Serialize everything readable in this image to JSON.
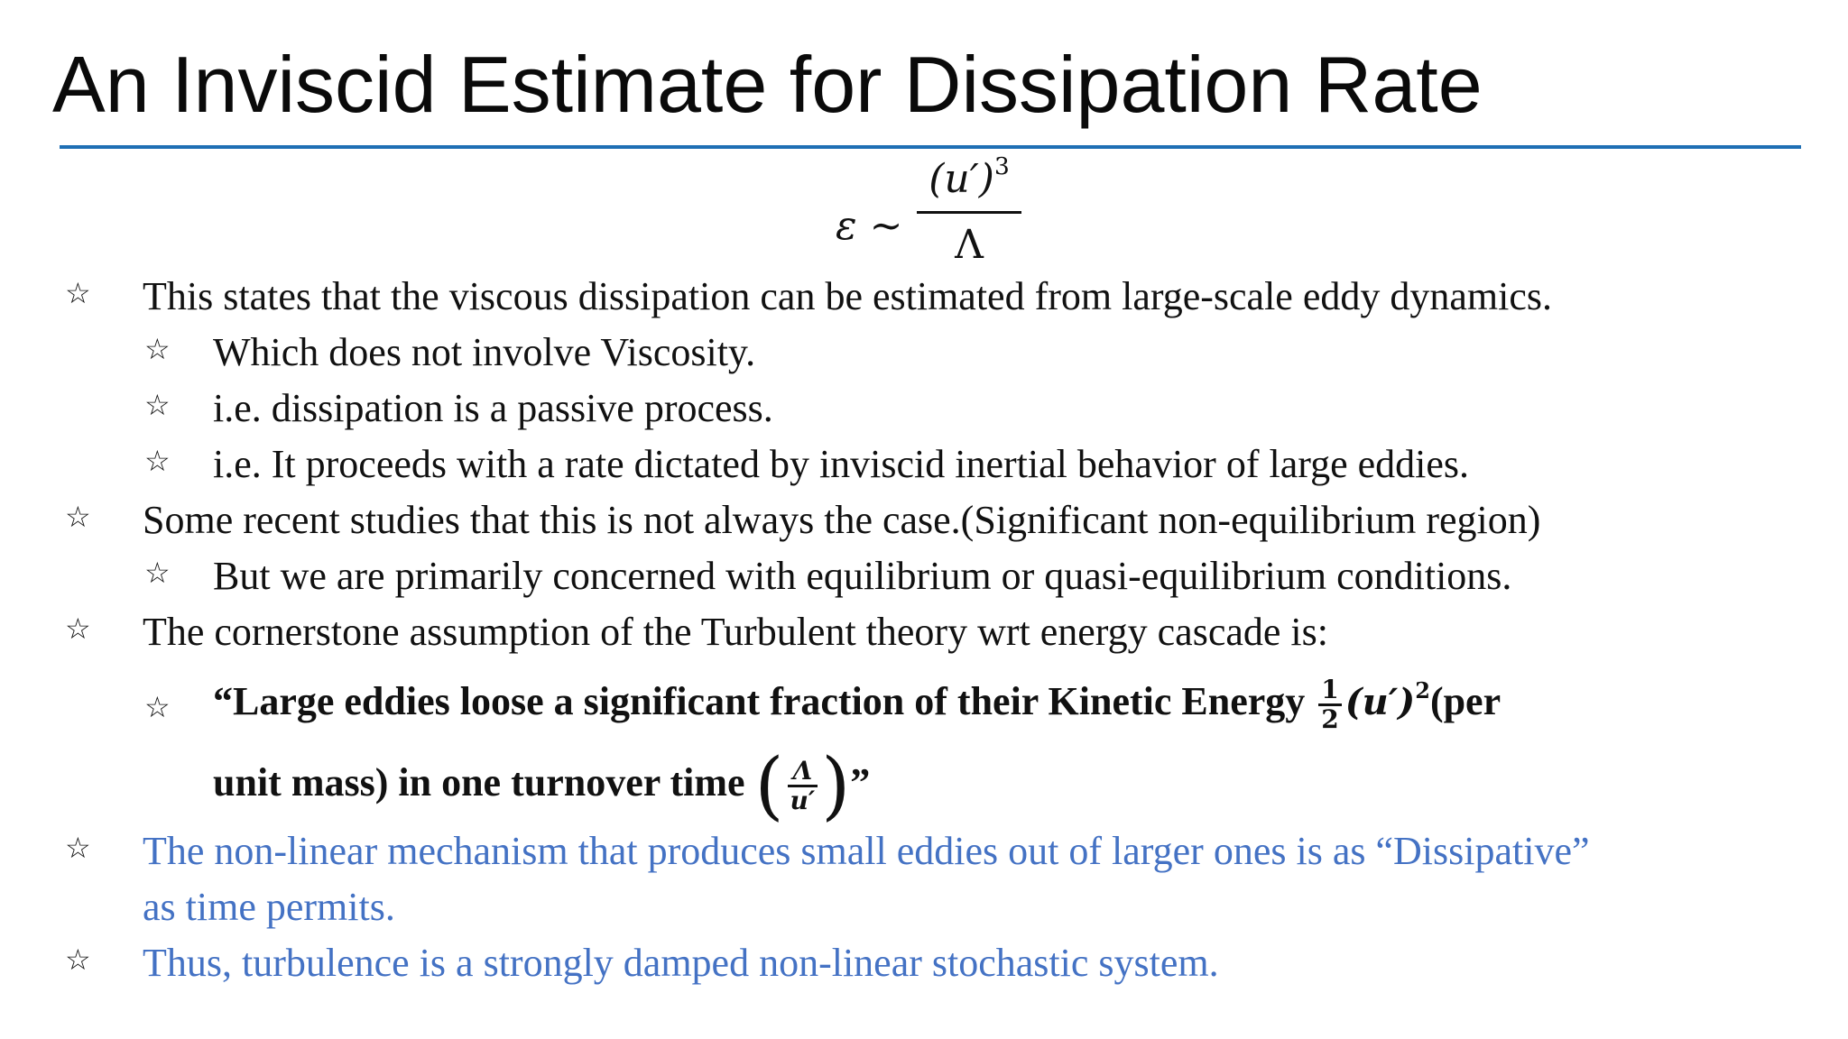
{
  "slide": {
    "title": "An Inviscid Estimate for Dissipation Rate",
    "accent_color": "#1f6fb4",
    "equation": {
      "lhs": "ε ~",
      "numerator": "(u′)",
      "numerator_exp": "3",
      "denominator": "Λ"
    },
    "bullet_icon": "star-outline-icon",
    "bullets": [
      "This states that the viscous dissipation can be estimated from large-scale eddy dynamics.",
      "Which does not involve Viscosity.",
      "i.e. dissipation is a passive process.",
      "i.e. It proceeds with a rate dictated by inviscid inertial behavior of  large eddies.",
      "Some recent studies that this is not always the case.(Significant non-equilibrium region)",
      "But we are primarily concerned with equilibrium or quasi-equilibrium conditions.",
      "The cornerstone assumption of  the Turbulent theory wrt energy cascade is:"
    ],
    "quote": {
      "part1": "“Large eddies loose a significant fraction of  their Kinetic Energy",
      "frac_num": "1",
      "frac_den": "2",
      "term": "(u′)",
      "term_exp": "2",
      "part2": "(per",
      "line2": "unit mass) in one turnover time",
      "time_num": "Λ",
      "time_den": "u′",
      "close": "”"
    },
    "blue_bullets": [
      "The non-linear mechanism that produces small eddies out of  larger ones is as “Dissipative”",
      "as time permits.",
      "Thus, turbulence is a strongly damped non-linear stochastic system."
    ],
    "blue_color": "#4472c4"
  }
}
